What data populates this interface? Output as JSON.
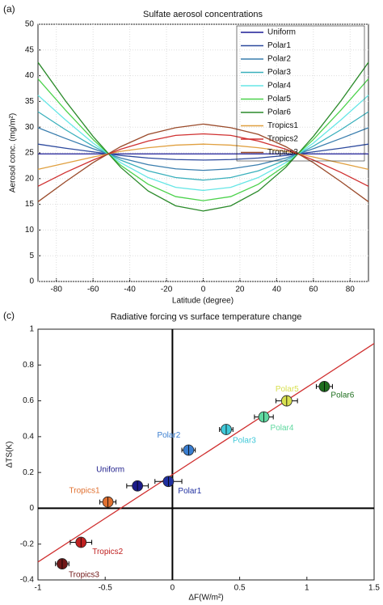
{
  "chart_data": [
    {
      "type": "line",
      "panel": "(a)",
      "title": "Sulfate aerosol concentrations",
      "x_label": "Latitude (degree)",
      "y_label": "Aerosol conc. (mg/m²)",
      "x": [
        -90,
        -75,
        -60,
        -45,
        -30,
        -15,
        0,
        15,
        30,
        45,
        60,
        75,
        90
      ],
      "xlim": [
        -90,
        90
      ],
      "xticks": [
        -80,
        -60,
        -40,
        -20,
        0,
        20,
        40,
        60,
        80
      ],
      "ylim": [
        0,
        50
      ],
      "yticks": [
        0,
        5,
        10,
        15,
        20,
        25,
        30,
        35,
        40,
        45,
        50
      ],
      "grid": true,
      "legend": "upper right",
      "series": [
        {
          "name": "Uniform",
          "color": "#1c1c96",
          "values": [
            24.8,
            24.8,
            24.8,
            24.8,
            24.8,
            24.8,
            24.8,
            24.8,
            24.8,
            24.8,
            24.8,
            24.8,
            24.8
          ]
        },
        {
          "name": "Polar1",
          "color": "#2d4a9e",
          "values": [
            26.7,
            25.9,
            25.2,
            24.5,
            24.0,
            23.7,
            23.6,
            23.7,
            24.0,
            24.5,
            25.2,
            25.9,
            26.7
          ]
        },
        {
          "name": "Polar2",
          "color": "#3a7eae",
          "values": [
            29.9,
            27.8,
            25.8,
            24.0,
            22.7,
            21.9,
            21.6,
            21.9,
            22.7,
            24.0,
            25.8,
            27.8,
            29.9
          ]
        },
        {
          "name": "Polar3",
          "color": "#3ab0bc",
          "values": [
            33.0,
            29.5,
            26.3,
            23.6,
            21.5,
            20.2,
            19.7,
            20.2,
            21.5,
            23.6,
            26.3,
            29.5,
            33.0
          ]
        },
        {
          "name": "Polar4",
          "color": "#66e6e6",
          "values": [
            36.2,
            31.4,
            26.9,
            23.1,
            20.2,
            18.3,
            17.7,
            18.3,
            20.2,
            23.1,
            26.9,
            31.4,
            36.2
          ]
        },
        {
          "name": "Polar5",
          "color": "#4cd24c",
          "values": [
            39.4,
            33.3,
            27.6,
            22.6,
            18.9,
            16.5,
            15.7,
            16.5,
            18.9,
            22.6,
            27.6,
            33.3,
            39.4
          ]
        },
        {
          "name": "Polar6",
          "color": "#2a8a2a",
          "values": [
            42.6,
            35.1,
            28.2,
            22.2,
            17.6,
            14.7,
            13.7,
            14.7,
            17.6,
            22.2,
            28.2,
            35.1,
            42.6
          ]
        },
        {
          "name": "Tropics1",
          "color": "#e0a040",
          "values": [
            21.8,
            23.0,
            24.2,
            25.3,
            26.0,
            26.5,
            26.7,
            26.5,
            26.0,
            25.3,
            24.2,
            23.0,
            21.8
          ]
        },
        {
          "name": "Tropics2",
          "color": "#d03030",
          "values": [
            18.5,
            21.2,
            23.6,
            25.7,
            27.3,
            28.4,
            28.7,
            28.4,
            27.3,
            25.7,
            23.6,
            21.2,
            18.5
          ]
        },
        {
          "name": "Tropics3",
          "color": "#9a4a2a",
          "values": [
            15.5,
            19.4,
            23.1,
            26.2,
            28.6,
            29.9,
            30.6,
            29.9,
            28.6,
            26.2,
            23.1,
            19.4,
            15.5
          ]
        }
      ]
    },
    {
      "type": "scatter",
      "panel": "(c)",
      "title": "Radiative forcing vs surface temperature change",
      "x_label": "ΔF(W/m²)",
      "y_label": "ΔTS(K)",
      "xlim": [
        -1,
        1.5
      ],
      "xticks": [
        -1,
        -0.5,
        0,
        0.5,
        1,
        1.5
      ],
      "ylim": [
        -0.4,
        1
      ],
      "yticks": [
        -0.4,
        -0.2,
        0,
        0.2,
        0.4,
        0.6,
        0.8,
        1
      ],
      "grid": false,
      "fit": {
        "color": "#d03030",
        "x": [
          -1,
          1.5
        ],
        "values": [
          -0.3,
          0.92
        ]
      },
      "series": [
        {
          "name": "Uniform",
          "color": "#1c1c8a",
          "x": [
            -0.26
          ],
          "values": [
            0.125
          ],
          "xerr": [
            0.08
          ]
        },
        {
          "name": "Polar1",
          "color": "#2030a0",
          "x": [
            -0.03
          ],
          "values": [
            0.15
          ],
          "xerr": [
            0.1
          ]
        },
        {
          "name": "Polar2",
          "color": "#3a7ed0",
          "x": [
            0.12
          ],
          "values": [
            0.325
          ],
          "xerr": [
            0.05
          ]
        },
        {
          "name": "Polar3",
          "color": "#40c8d8",
          "x": [
            0.4
          ],
          "values": [
            0.44
          ],
          "xerr": [
            0.05
          ]
        },
        {
          "name": "Polar4",
          "color": "#60d8a0",
          "x": [
            0.68
          ],
          "values": [
            0.51
          ],
          "xerr": [
            0.07
          ]
        },
        {
          "name": "Polar5",
          "color": "#d8e050",
          "x": [
            0.85
          ],
          "values": [
            0.6
          ],
          "xerr": [
            0.08
          ]
        },
        {
          "name": "Polar6",
          "color": "#1e6e1e",
          "x": [
            1.13
          ],
          "values": [
            0.68
          ],
          "xerr": [
            0.06
          ]
        },
        {
          "name": "Tropics1",
          "color": "#e07030",
          "x": [
            -0.48
          ],
          "values": [
            0.035
          ],
          "xerr": [
            0.06
          ]
        },
        {
          "name": "Tropics2",
          "color": "#c02020",
          "x": [
            -0.68
          ],
          "values": [
            -0.19
          ],
          "xerr": [
            0.08
          ]
        },
        {
          "name": "Tropics3",
          "color": "#701818",
          "x": [
            -0.82
          ],
          "values": [
            -0.31
          ],
          "xerr": [
            0.05
          ]
        }
      ]
    }
  ]
}
